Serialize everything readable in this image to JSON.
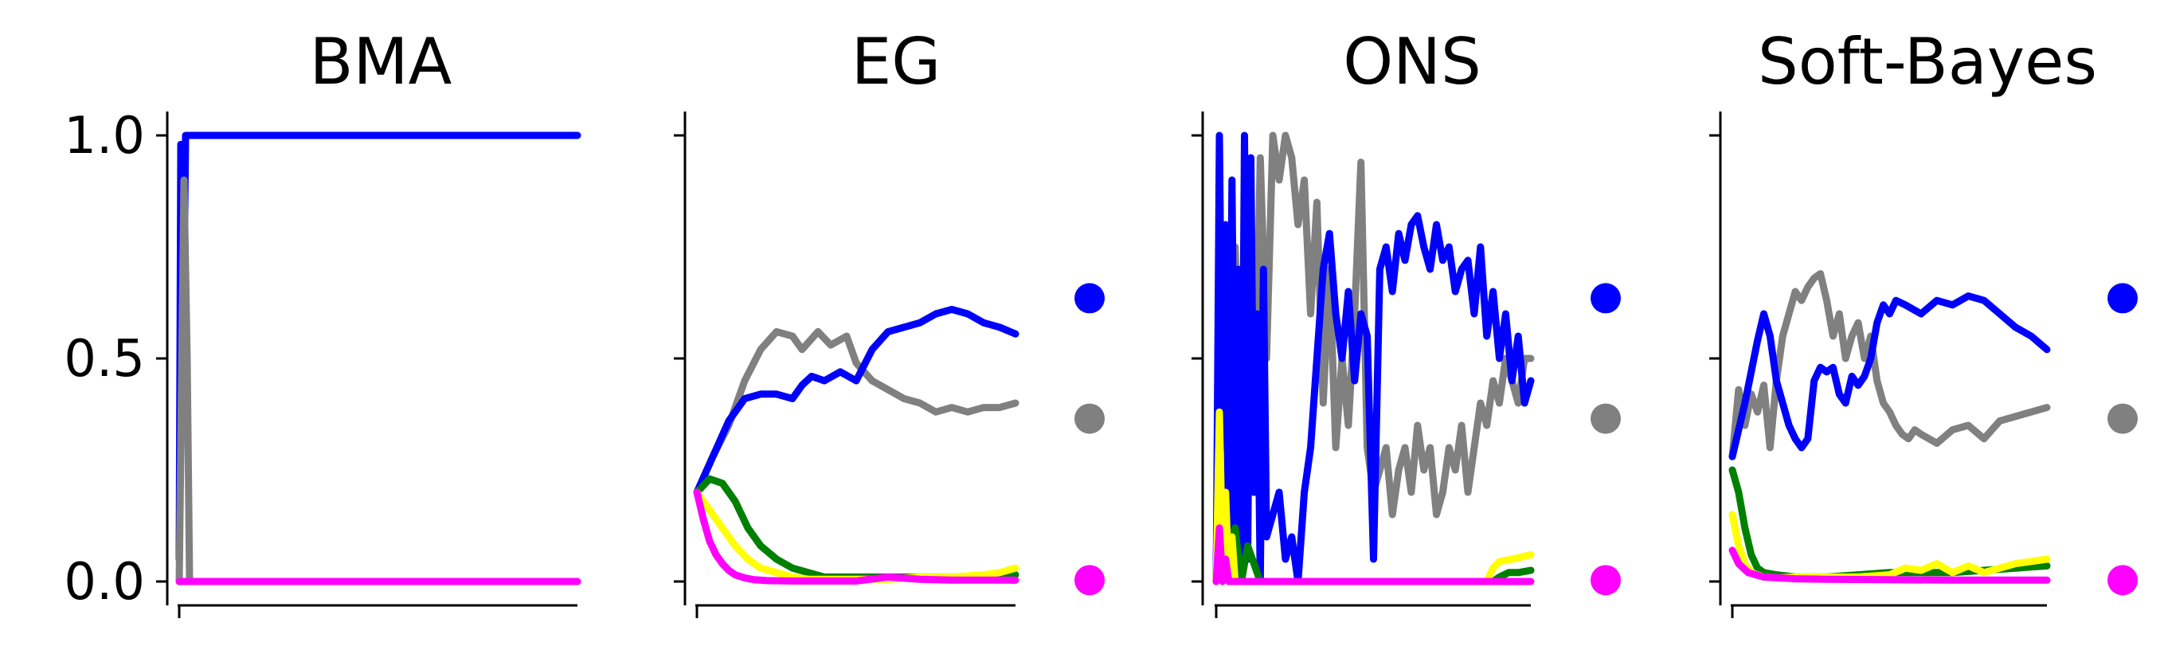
{
  "chart_data": [
    {
      "type": "line",
      "title": "BMA",
      "ylim": [
        0,
        1
      ],
      "yticks": [
        "0.0",
        "0.5",
        "1.0"
      ],
      "xlabel": "",
      "ylabel": "",
      "grid": false,
      "final_markers": [],
      "series": [
        {
          "color": "#0000ff",
          "x": [
            0,
            0.004,
            0.01,
            0.016,
            0.03,
            1.0
          ],
          "y": [
            0.05,
            0.98,
            0.5,
            1.0,
            1.0,
            1.0
          ]
        },
        {
          "color": "#808080",
          "x": [
            0,
            0.012,
            0.02,
            0.026,
            0.03,
            0.036,
            0.04,
            1.0
          ],
          "y": [
            0.0,
            0.9,
            0.5,
            0.0,
            0.0,
            0.0,
            0.0,
            0.0
          ]
        },
        {
          "color": "#008000",
          "x": [
            0,
            1.0
          ],
          "y": [
            0.0,
            0.0
          ]
        },
        {
          "color": "#ffff00",
          "x": [
            0,
            1.0
          ],
          "y": [
            0.0,
            0.0
          ]
        },
        {
          "color": "#ff00ff",
          "x": [
            0,
            1.0
          ],
          "y": [
            0.0,
            0.0
          ]
        }
      ]
    },
    {
      "type": "line",
      "title": "EG",
      "ylim": [
        0,
        1
      ],
      "yticks": [
        "0.0",
        "0.5",
        "1.0"
      ],
      "xlabel": "",
      "ylabel": "",
      "grid": false,
      "final_markers": [
        {
          "color": "#0000ff",
          "y": 0.635
        },
        {
          "color": "#808080",
          "y": 0.365
        },
        {
          "color": "#ff00ff",
          "y": 0.003
        }
      ],
      "series": [
        {
          "color": "#808080",
          "x": [
            0,
            0.05,
            0.1,
            0.15,
            0.2,
            0.25,
            0.3,
            0.33,
            0.38,
            0.42,
            0.47,
            0.5,
            0.55,
            0.6,
            0.65,
            0.7,
            0.75,
            0.8,
            0.85,
            0.9,
            0.95,
            1.0
          ],
          "y": [
            0.2,
            0.28,
            0.35,
            0.45,
            0.52,
            0.56,
            0.55,
            0.52,
            0.56,
            0.53,
            0.55,
            0.49,
            0.45,
            0.43,
            0.41,
            0.4,
            0.38,
            0.39,
            0.38,
            0.39,
            0.39,
            0.4
          ]
        },
        {
          "color": "#0000ff",
          "x": [
            0,
            0.05,
            0.1,
            0.15,
            0.2,
            0.25,
            0.3,
            0.33,
            0.36,
            0.4,
            0.45,
            0.5,
            0.55,
            0.6,
            0.65,
            0.7,
            0.75,
            0.8,
            0.85,
            0.9,
            0.95,
            1.0
          ],
          "y": [
            0.2,
            0.28,
            0.36,
            0.41,
            0.42,
            0.42,
            0.41,
            0.44,
            0.46,
            0.45,
            0.47,
            0.45,
            0.52,
            0.56,
            0.57,
            0.58,
            0.6,
            0.61,
            0.6,
            0.58,
            0.57,
            0.555
          ]
        },
        {
          "color": "#008000",
          "x": [
            0,
            0.04,
            0.08,
            0.12,
            0.16,
            0.2,
            0.25,
            0.3,
            0.35,
            0.4,
            0.5,
            0.6,
            0.7,
            0.8,
            0.9,
            1.0
          ],
          "y": [
            0.2,
            0.23,
            0.22,
            0.18,
            0.12,
            0.08,
            0.05,
            0.03,
            0.02,
            0.01,
            0.01,
            0.01,
            0.01,
            0.01,
            0.01,
            0.015
          ]
        },
        {
          "color": "#ffff00",
          "x": [
            0,
            0.04,
            0.08,
            0.12,
            0.16,
            0.2,
            0.25,
            0.3,
            0.35,
            0.4,
            0.5,
            0.6,
            0.7,
            0.8,
            0.9,
            0.95,
            1.0
          ],
          "y": [
            0.2,
            0.16,
            0.12,
            0.08,
            0.05,
            0.03,
            0.02,
            0.01,
            0.005,
            0.005,
            0.005,
            0.005,
            0.01,
            0.01,
            0.015,
            0.02,
            0.03
          ]
        },
        {
          "color": "#ff00ff",
          "x": [
            0,
            0.02,
            0.04,
            0.06,
            0.08,
            0.1,
            0.12,
            0.15,
            0.18,
            0.22,
            0.3,
            0.5,
            0.6,
            0.7,
            0.8,
            0.9,
            1.0
          ],
          "y": [
            0.2,
            0.14,
            0.09,
            0.06,
            0.04,
            0.025,
            0.015,
            0.008,
            0.004,
            0.002,
            0.001,
            0.001,
            0.01,
            0.005,
            0.003,
            0.003,
            0.003
          ]
        }
      ]
    },
    {
      "type": "line",
      "title": "ONS",
      "ylim": [
        0,
        1
      ],
      "yticks": [
        "0.0",
        "0.5",
        "1.0"
      ],
      "xlabel": "",
      "ylabel": "",
      "grid": false,
      "final_markers": [
        {
          "color": "#0000ff",
          "y": 0.635
        },
        {
          "color": "#808080",
          "y": 0.365
        },
        {
          "color": "#ff00ff",
          "y": 0.003
        }
      ],
      "series": [
        {
          "color": "#808080",
          "x": [
            0,
            0.02,
            0.04,
            0.06,
            0.08,
            0.1,
            0.12,
            0.14,
            0.16,
            0.18,
            0.2,
            0.22,
            0.24,
            0.26,
            0.28,
            0.3,
            0.32,
            0.34,
            0.36,
            0.38,
            0.4,
            0.42,
            0.44,
            0.46,
            0.48,
            0.5,
            0.52,
            0.54,
            0.56,
            0.58,
            0.6,
            0.62,
            0.64,
            0.66,
            0.68,
            0.7,
            0.72,
            0.74,
            0.76,
            0.78,
            0.8,
            0.82,
            0.84,
            0.86,
            0.88,
            0.9,
            0.92,
            0.94,
            0.96,
            0.98,
            1.0
          ],
          "y": [
            0.05,
            0.55,
            0.1,
            0.75,
            0.3,
            0.85,
            0.2,
            0.95,
            0.5,
            1.0,
            0.9,
            1.0,
            0.95,
            0.8,
            0.9,
            0.6,
            0.85,
            0.4,
            0.7,
            0.3,
            0.5,
            0.35,
            0.6,
            0.94,
            0.3,
            0.2,
            0.25,
            0.3,
            0.15,
            0.25,
            0.3,
            0.2,
            0.35,
            0.25,
            0.3,
            0.15,
            0.2,
            0.3,
            0.25,
            0.35,
            0.2,
            0.3,
            0.4,
            0.35,
            0.45,
            0.4,
            0.5,
            0.45,
            0.4,
            0.5,
            0.5
          ]
        },
        {
          "color": "#0000ff",
          "x": [
            0,
            0.01,
            0.02,
            0.03,
            0.04,
            0.05,
            0.06,
            0.07,
            0.08,
            0.09,
            0.1,
            0.11,
            0.12,
            0.13,
            0.14,
            0.15,
            0.16,
            0.18,
            0.2,
            0.22,
            0.24,
            0.26,
            0.28,
            0.3,
            0.32,
            0.34,
            0.36,
            0.38,
            0.4,
            0.42,
            0.44,
            0.46,
            0.48,
            0.5,
            0.52,
            0.54,
            0.56,
            0.58,
            0.6,
            0.62,
            0.64,
            0.66,
            0.68,
            0.7,
            0.72,
            0.74,
            0.76,
            0.78,
            0.8,
            0.82,
            0.84,
            0.86,
            0.88,
            0.9,
            0.92,
            0.94,
            0.96,
            0.98,
            1.0
          ],
          "y": [
            0.0,
            1.0,
            0.3,
            0.8,
            0.0,
            0.9,
            0.1,
            0.7,
            0.0,
            1.0,
            0.05,
            0.95,
            0.2,
            0.6,
            0.0,
            0.7,
            0.1,
            0.15,
            0.2,
            0.05,
            0.1,
            0.0,
            0.2,
            0.3,
            0.5,
            0.7,
            0.78,
            0.6,
            0.5,
            0.65,
            0.45,
            0.6,
            0.55,
            0.05,
            0.7,
            0.75,
            0.65,
            0.78,
            0.72,
            0.8,
            0.82,
            0.75,
            0.7,
            0.8,
            0.72,
            0.75,
            0.65,
            0.7,
            0.72,
            0.6,
            0.75,
            0.55,
            0.65,
            0.5,
            0.6,
            0.45,
            0.55,
            0.4,
            0.45
          ]
        },
        {
          "color": "#008000",
          "x": [
            0,
            0.06,
            0.08,
            0.1,
            0.14,
            0.2,
            0.5,
            0.88,
            0.9,
            0.93,
            0.96,
            1.0
          ],
          "y": [
            0.0,
            0.12,
            0.0,
            0.08,
            0.0,
            0.0,
            0.0,
            0.0,
            0.01,
            0.02,
            0.02,
            0.025
          ]
        },
        {
          "color": "#ffff00",
          "x": [
            0,
            0.01,
            0.02,
            0.03,
            0.04,
            0.05,
            0.06,
            0.1,
            0.5,
            0.86,
            0.88,
            0.9,
            0.94,
            0.97,
            1.0
          ],
          "y": [
            0.0,
            0.38,
            0.05,
            0.2,
            0.0,
            0.1,
            0.0,
            0.0,
            0.0,
            0.0,
            0.03,
            0.045,
            0.05,
            0.055,
            0.06
          ]
        },
        {
          "color": "#ff00ff",
          "x": [
            0,
            0.01,
            0.02,
            0.03,
            0.04,
            1.0
          ],
          "y": [
            0.0,
            0.12,
            0.0,
            0.05,
            0.0,
            0.0
          ]
        }
      ]
    },
    {
      "type": "line",
      "title": "Soft-Bayes",
      "ylim": [
        0,
        1
      ],
      "yticks": [
        "0.0",
        "0.5",
        "1.0"
      ],
      "xlabel": "",
      "ylabel": "",
      "grid": false,
      "final_markers": [
        {
          "color": "#0000ff",
          "y": 0.635
        },
        {
          "color": "#808080",
          "y": 0.365
        },
        {
          "color": "#ff00ff",
          "y": 0.003
        }
      ],
      "series": [
        {
          "color": "#808080",
          "x": [
            0,
            0.02,
            0.04,
            0.06,
            0.08,
            0.1,
            0.12,
            0.14,
            0.16,
            0.18,
            0.2,
            0.22,
            0.24,
            0.26,
            0.28,
            0.3,
            0.32,
            0.34,
            0.36,
            0.38,
            0.4,
            0.42,
            0.44,
            0.46,
            0.48,
            0.5,
            0.52,
            0.54,
            0.56,
            0.58,
            0.6,
            0.65,
            0.7,
            0.75,
            0.8,
            0.85,
            0.9,
            0.95,
            1.0
          ],
          "y": [
            0.28,
            0.43,
            0.35,
            0.42,
            0.38,
            0.44,
            0.3,
            0.45,
            0.55,
            0.6,
            0.65,
            0.63,
            0.66,
            0.68,
            0.69,
            0.63,
            0.55,
            0.6,
            0.5,
            0.55,
            0.58,
            0.5,
            0.55,
            0.45,
            0.4,
            0.38,
            0.35,
            0.33,
            0.32,
            0.34,
            0.33,
            0.31,
            0.34,
            0.35,
            0.32,
            0.36,
            0.37,
            0.38,
            0.39
          ]
        },
        {
          "color": "#0000ff",
          "x": [
            0,
            0.02,
            0.04,
            0.06,
            0.08,
            0.1,
            0.12,
            0.14,
            0.16,
            0.18,
            0.2,
            0.22,
            0.24,
            0.26,
            0.28,
            0.3,
            0.32,
            0.34,
            0.36,
            0.38,
            0.4,
            0.42,
            0.44,
            0.46,
            0.48,
            0.5,
            0.52,
            0.55,
            0.6,
            0.65,
            0.7,
            0.75,
            0.8,
            0.85,
            0.9,
            0.95,
            1.0
          ],
          "y": [
            0.28,
            0.34,
            0.4,
            0.47,
            0.54,
            0.6,
            0.55,
            0.45,
            0.4,
            0.35,
            0.32,
            0.3,
            0.32,
            0.45,
            0.48,
            0.47,
            0.48,
            0.42,
            0.4,
            0.46,
            0.44,
            0.46,
            0.5,
            0.58,
            0.62,
            0.6,
            0.63,
            0.62,
            0.6,
            0.63,
            0.62,
            0.64,
            0.63,
            0.6,
            0.57,
            0.55,
            0.52
          ]
        },
        {
          "color": "#008000",
          "x": [
            0,
            0.02,
            0.04,
            0.06,
            0.08,
            0.1,
            0.14,
            0.2,
            0.3,
            0.4,
            0.5,
            0.6,
            0.7,
            0.8,
            0.9,
            1.0
          ],
          "y": [
            0.25,
            0.2,
            0.12,
            0.06,
            0.03,
            0.02,
            0.015,
            0.01,
            0.01,
            0.015,
            0.02,
            0.02,
            0.02,
            0.025,
            0.03,
            0.035
          ]
        },
        {
          "color": "#ffff00",
          "x": [
            0,
            0.02,
            0.04,
            0.06,
            0.08,
            0.1,
            0.15,
            0.2,
            0.3,
            0.4,
            0.5,
            0.55,
            0.6,
            0.65,
            0.7,
            0.75,
            0.8,
            0.85,
            0.9,
            0.95,
            1.0
          ],
          "y": [
            0.15,
            0.08,
            0.04,
            0.02,
            0.015,
            0.01,
            0.008,
            0.01,
            0.01,
            0.01,
            0.015,
            0.03,
            0.025,
            0.04,
            0.02,
            0.035,
            0.02,
            0.03,
            0.04,
            0.045,
            0.05
          ]
        },
        {
          "color": "#ff00ff",
          "x": [
            0,
            0.02,
            0.05,
            0.1,
            0.2,
            0.3,
            0.5,
            0.7,
            0.9,
            1.0
          ],
          "y": [
            0.07,
            0.04,
            0.02,
            0.01,
            0.006,
            0.005,
            0.004,
            0.003,
            0.003,
            0.003
          ]
        }
      ]
    }
  ]
}
